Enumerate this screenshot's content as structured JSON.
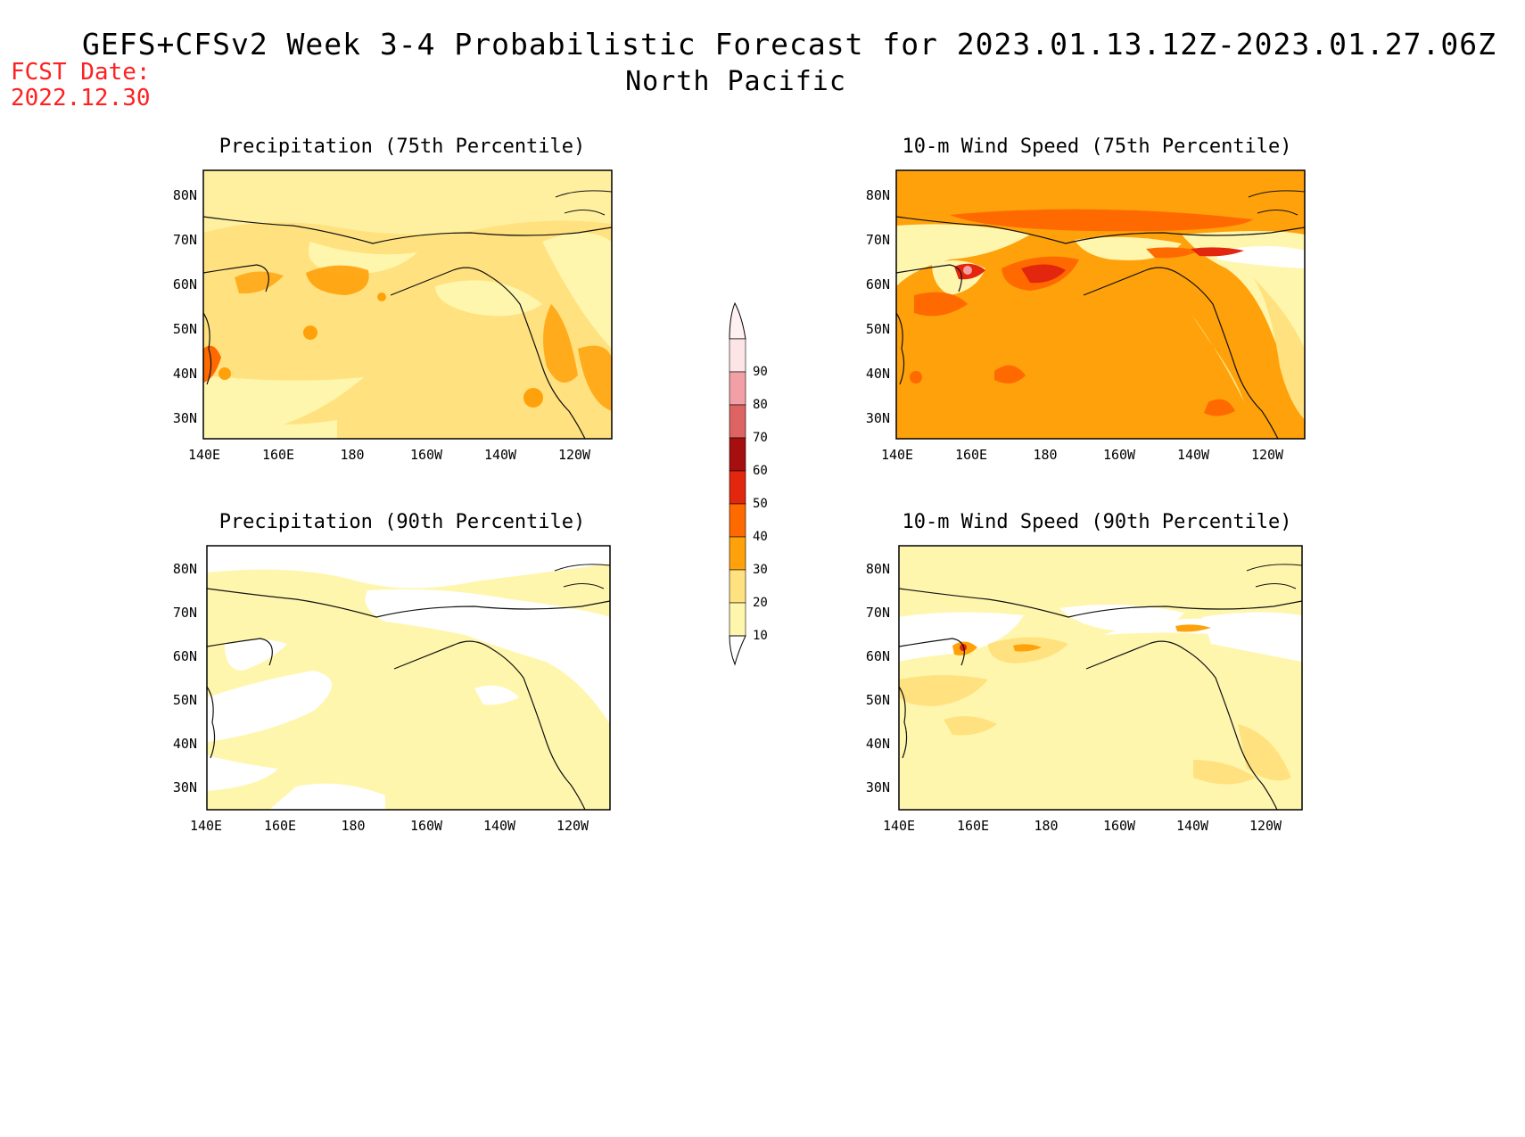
{
  "header": {
    "title_line1": "GEFS+CFSv2 Week 3-4 Probabilistic Forecast for 2023.01.13.12Z-2023.01.27.06Z",
    "title_line2": "North Pacific",
    "fcst_label": "FCST Date:",
    "fcst_date": "2022.12.30"
  },
  "axes": {
    "lat_labels": [
      "80N",
      "70N",
      "60N",
      "50N",
      "40N",
      "30N"
    ],
    "lon_labels": [
      "140E",
      "160E",
      "180",
      "160W",
      "140W",
      "120W"
    ]
  },
  "panels": [
    {
      "title": "Precipitation (75th Percentile)",
      "dominant_level": "20-30"
    },
    {
      "title": "10-m Wind Speed (75th Percentile)",
      "dominant_level": "30-40"
    },
    {
      "title": "Precipitation (90th Percentile)",
      "dominant_level": "10-20"
    },
    {
      "title": "10-m Wind Speed (90th Percentile)",
      "dominant_level": "10-20"
    }
  ],
  "colorbar": {
    "labels": [
      "90",
      "80",
      "70",
      "60",
      "50",
      "40",
      "30",
      "20",
      "10"
    ],
    "colors": [
      "#fde4e6",
      "#f2a0a6",
      "#de6464",
      "#a50f0f",
      "#e3260e",
      "#ff6a00",
      "#ffa10a",
      "#ffe27f",
      "#fff6ae"
    ]
  }
}
